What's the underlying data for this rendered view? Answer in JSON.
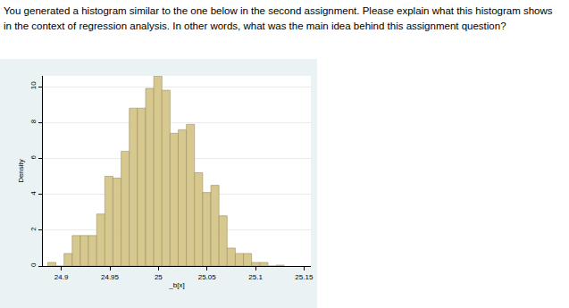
{
  "question": "You generated a histogram similar to the one below in the second assignment. Please explain what this histogram shows in the context of regression analysis. In other words, what was the main idea behind this assignment question?",
  "chart_data": {
    "type": "histogram",
    "x_label": "_b[x]",
    "y_label": "Density",
    "bins": [
      24.886,
      24.8944,
      24.9028,
      24.9112,
      24.9196,
      24.928,
      24.9364,
      24.9448,
      24.9532,
      24.9616,
      24.97,
      24.9784,
      24.9868,
      24.9952,
      25.0036,
      25.012,
      25.0204,
      25.0288,
      25.0372,
      25.0456,
      25.054,
      25.0624,
      25.0708,
      25.0792,
      25.0876,
      25.096,
      25.1044,
      25.1128,
      25.1212,
      25.1296
    ],
    "values": [
      0.2,
      0,
      0.7,
      1.7,
      1.7,
      1.7,
      2.9,
      5.0,
      4.9,
      6.4,
      8.8,
      8.8,
      9.9,
      10.6,
      9.8,
      7.4,
      7.6,
      7.9,
      5.2,
      4.1,
      4.5,
      2.8,
      1.0,
      0.7,
      0.7,
      0.2,
      0.2,
      0,
      0.05
    ],
    "color": "#d6c88e",
    "xlim": [
      24.881,
      25.157
    ],
    "xticks": [
      24.9,
      24.95,
      25,
      25.05,
      25.1,
      25.15
    ],
    "ylim": [
      0,
      10.6
    ],
    "yticks": [
      0,
      2,
      4,
      6,
      8,
      10
    ],
    "grid": true
  }
}
